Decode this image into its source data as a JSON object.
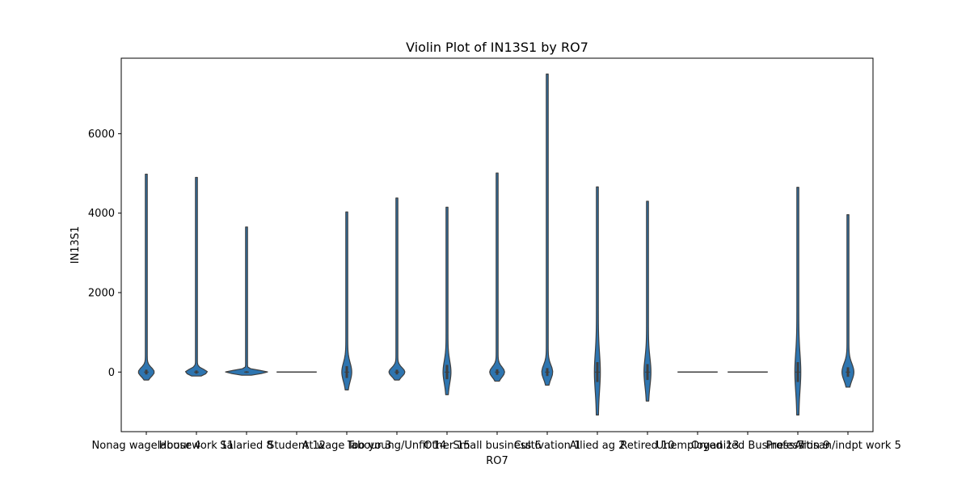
{
  "chart_data": {
    "type": "violin",
    "title": "Violin Plot of IN13S1 by RO7",
    "xlabel": "RO7",
    "ylabel": "IN13S1",
    "ylim": [
      -1500,
      7900
    ],
    "yticks": [
      0,
      2000,
      4000,
      6000
    ],
    "grid": false,
    "legend": "none",
    "colors": {
      "violin_fill": "#2e75b0",
      "violin_edge": "#3f3f3f",
      "axis": "#000000"
    },
    "categories": [
      "Nonag wagelabour 4",
      "Housework 11",
      "Salaried 8",
      "Student 12",
      "At wage labour 3",
      "Too young/Unfit 14",
      "Other 15",
      "Small business 6",
      "Cultivation 1",
      "Allied ag 2",
      "Retired 10",
      "Unemployed 13",
      "Organized Business 7",
      "Profession 9",
      "Artisan/indpt work 5"
    ],
    "violins": [
      {
        "min": -200,
        "max": 4980,
        "median": 0,
        "q1": -60,
        "q3": 60,
        "bulk_half_range": 200,
        "bulk_half_width": 0.14,
        "flat": false
      },
      {
        "min": -100,
        "max": 4900,
        "median": 0,
        "q1": -40,
        "q3": 40,
        "bulk_half_range": 130,
        "bulk_half_width": 0.2,
        "flat": false
      },
      {
        "min": -80,
        "max": 3650,
        "median": 0,
        "q1": -20,
        "q3": 20,
        "bulk_half_range": 80,
        "bulk_half_width": 0.4,
        "flat": false
      },
      {
        "min": 0,
        "max": 0,
        "median": 0,
        "q1": 0,
        "q3": 0,
        "bulk_half_range": 0,
        "bulk_half_width": 0.4,
        "flat": true
      },
      {
        "min": -450,
        "max": 4030,
        "median": 0,
        "q1": -150,
        "q3": 150,
        "bulk_half_range": 420,
        "bulk_half_width": 0.08,
        "flat": false
      },
      {
        "min": -200,
        "max": 4380,
        "median": 0,
        "q1": -60,
        "q3": 60,
        "bulk_half_range": 200,
        "bulk_half_width": 0.14,
        "flat": false
      },
      {
        "min": -570,
        "max": 4150,
        "median": 0,
        "q1": -180,
        "q3": 180,
        "bulk_half_range": 500,
        "bulk_half_width": 0.06,
        "flat": false
      },
      {
        "min": -230,
        "max": 5010,
        "median": 0,
        "q1": -70,
        "q3": 70,
        "bulk_half_range": 230,
        "bulk_half_width": 0.13,
        "flat": false
      },
      {
        "min": -330,
        "max": 7500,
        "median": 0,
        "q1": -100,
        "q3": 100,
        "bulk_half_range": 320,
        "bulk_half_width": 0.09,
        "flat": false
      },
      {
        "min": -1080,
        "max": 4660,
        "median": 0,
        "q1": -250,
        "q3": 250,
        "bulk_half_range": 850,
        "bulk_half_width": 0.04,
        "flat": false
      },
      {
        "min": -730,
        "max": 4300,
        "median": 0,
        "q1": -200,
        "q3": 200,
        "bulk_half_range": 650,
        "bulk_half_width": 0.05,
        "flat": false
      },
      {
        "min": 0,
        "max": 0,
        "median": 0,
        "q1": 0,
        "q3": 0,
        "bulk_half_range": 0,
        "bulk_half_width": 0.4,
        "flat": true
      },
      {
        "min": 0,
        "max": 0,
        "median": 0,
        "q1": 0,
        "q3": 0,
        "bulk_half_range": 0,
        "bulk_half_width": 0.4,
        "flat": true
      },
      {
        "min": -1080,
        "max": 4650,
        "median": 0,
        "q1": -250,
        "q3": 250,
        "bulk_half_range": 850,
        "bulk_half_width": 0.04,
        "flat": false
      },
      {
        "min": -380,
        "max": 3960,
        "median": 0,
        "q1": -120,
        "q3": 120,
        "bulk_half_range": 380,
        "bulk_half_width": 0.1,
        "flat": false
      }
    ]
  }
}
